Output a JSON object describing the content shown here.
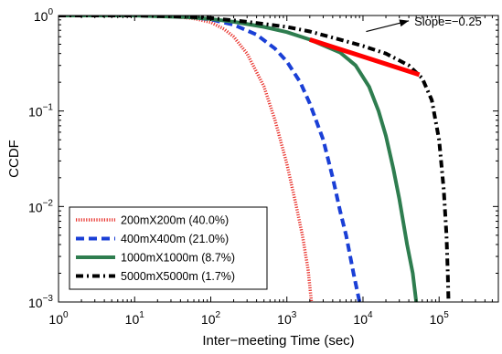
{
  "chart_data": {
    "type": "line",
    "xlabel": "Inter−meeting Time (sec)",
    "ylabel": "CCDF",
    "xscale": "log",
    "yscale": "log",
    "xlim": [
      1,
      600000
    ],
    "ylim": [
      0.001,
      1
    ],
    "x_ticks": [
      {
        "value": 1,
        "base": "10",
        "exp": "0"
      },
      {
        "value": 10,
        "base": "10",
        "exp": "1"
      },
      {
        "value": 100,
        "base": "10",
        "exp": "2"
      },
      {
        "value": 1000,
        "base": "10",
        "exp": "3"
      },
      {
        "value": 10000,
        "base": "10",
        "exp": "4"
      },
      {
        "value": 100000,
        "base": "10",
        "exp": "5"
      }
    ],
    "y_ticks": [
      {
        "value": 0.001,
        "base": "10",
        "exp": "−3"
      },
      {
        "value": 0.01,
        "base": "10",
        "exp": "−2"
      },
      {
        "value": 0.1,
        "base": "10",
        "exp": "−1"
      },
      {
        "value": 1,
        "base": "10",
        "exp": "0"
      }
    ],
    "grid": false,
    "legend_position": "bottom-left",
    "series": [
      {
        "name": "200mX200m (40.0%)",
        "color": "#e8312b",
        "style": "dotted",
        "points": [
          [
            1,
            1
          ],
          [
            10,
            1
          ],
          [
            30,
            0.98
          ],
          [
            60,
            0.93
          ],
          [
            100,
            0.85
          ],
          [
            150,
            0.72
          ],
          [
            200,
            0.6
          ],
          [
            300,
            0.4
          ],
          [
            500,
            0.18
          ],
          [
            700,
            0.08
          ],
          [
            1000,
            0.028
          ],
          [
            1300,
            0.011
          ],
          [
            1600,
            0.005
          ],
          [
            1900,
            0.0022
          ],
          [
            2100,
            0.001
          ]
        ]
      },
      {
        "name": "400mX400m (21.0%)",
        "color": "#1a3fd6",
        "style": "dashed",
        "points": [
          [
            1,
            1
          ],
          [
            20,
            1
          ],
          [
            50,
            0.97
          ],
          [
            100,
            0.91
          ],
          [
            200,
            0.8
          ],
          [
            400,
            0.63
          ],
          [
            700,
            0.45
          ],
          [
            1000,
            0.33
          ],
          [
            1500,
            0.2
          ],
          [
            2000,
            0.12
          ],
          [
            3000,
            0.05
          ],
          [
            4000,
            0.02
          ],
          [
            5000,
            0.009
          ],
          [
            6000,
            0.005
          ],
          [
            7500,
            0.002
          ],
          [
            9000,
            0.001
          ]
        ]
      },
      {
        "name": "1000mX1000m (8.7%)",
        "color": "#2e7d4f",
        "style": "solid",
        "points": [
          [
            1,
            1
          ],
          [
            10,
            1
          ],
          [
            50,
            0.96
          ],
          [
            100,
            0.92
          ],
          [
            200,
            0.86
          ],
          [
            500,
            0.76
          ],
          [
            1000,
            0.67
          ],
          [
            2000,
            0.56
          ],
          [
            5000,
            0.41
          ],
          [
            8000,
            0.3
          ],
          [
            12000,
            0.18
          ],
          [
            16000,
            0.1
          ],
          [
            20000,
            0.055
          ],
          [
            25000,
            0.025
          ],
          [
            30000,
            0.012
          ],
          [
            38000,
            0.004
          ],
          [
            45000,
            0.002
          ],
          [
            50000,
            0.001
          ]
        ]
      },
      {
        "name": "5000mX5000m (1.7%)",
        "color": "#000000",
        "style": "dashdot",
        "points": [
          [
            1,
            1
          ],
          [
            10,
            1
          ],
          [
            50,
            0.97
          ],
          [
            100,
            0.94
          ],
          [
            300,
            0.86
          ],
          [
            1000,
            0.76
          ],
          [
            2000,
            0.68
          ],
          [
            5000,
            0.56
          ],
          [
            10000,
            0.48
          ],
          [
            20000,
            0.4
          ],
          [
            40000,
            0.3
          ],
          [
            60000,
            0.22
          ],
          [
            80000,
            0.13
          ],
          [
            100000,
            0.05
          ],
          [
            115000,
            0.015
          ],
          [
            125000,
            0.005
          ],
          [
            130000,
            0.002
          ],
          [
            133000,
            0.001
          ]
        ]
      }
    ],
    "slope_line": {
      "color": "#ff0000",
      "points": [
        [
          2000,
          0.56
        ],
        [
          55000,
          0.24
        ]
      ]
    },
    "annotation": {
      "text": "Slope=−0.25",
      "arrow_from": [
        11000,
        0.68
      ],
      "arrow_to": [
        40000,
        0.88
      ]
    }
  }
}
